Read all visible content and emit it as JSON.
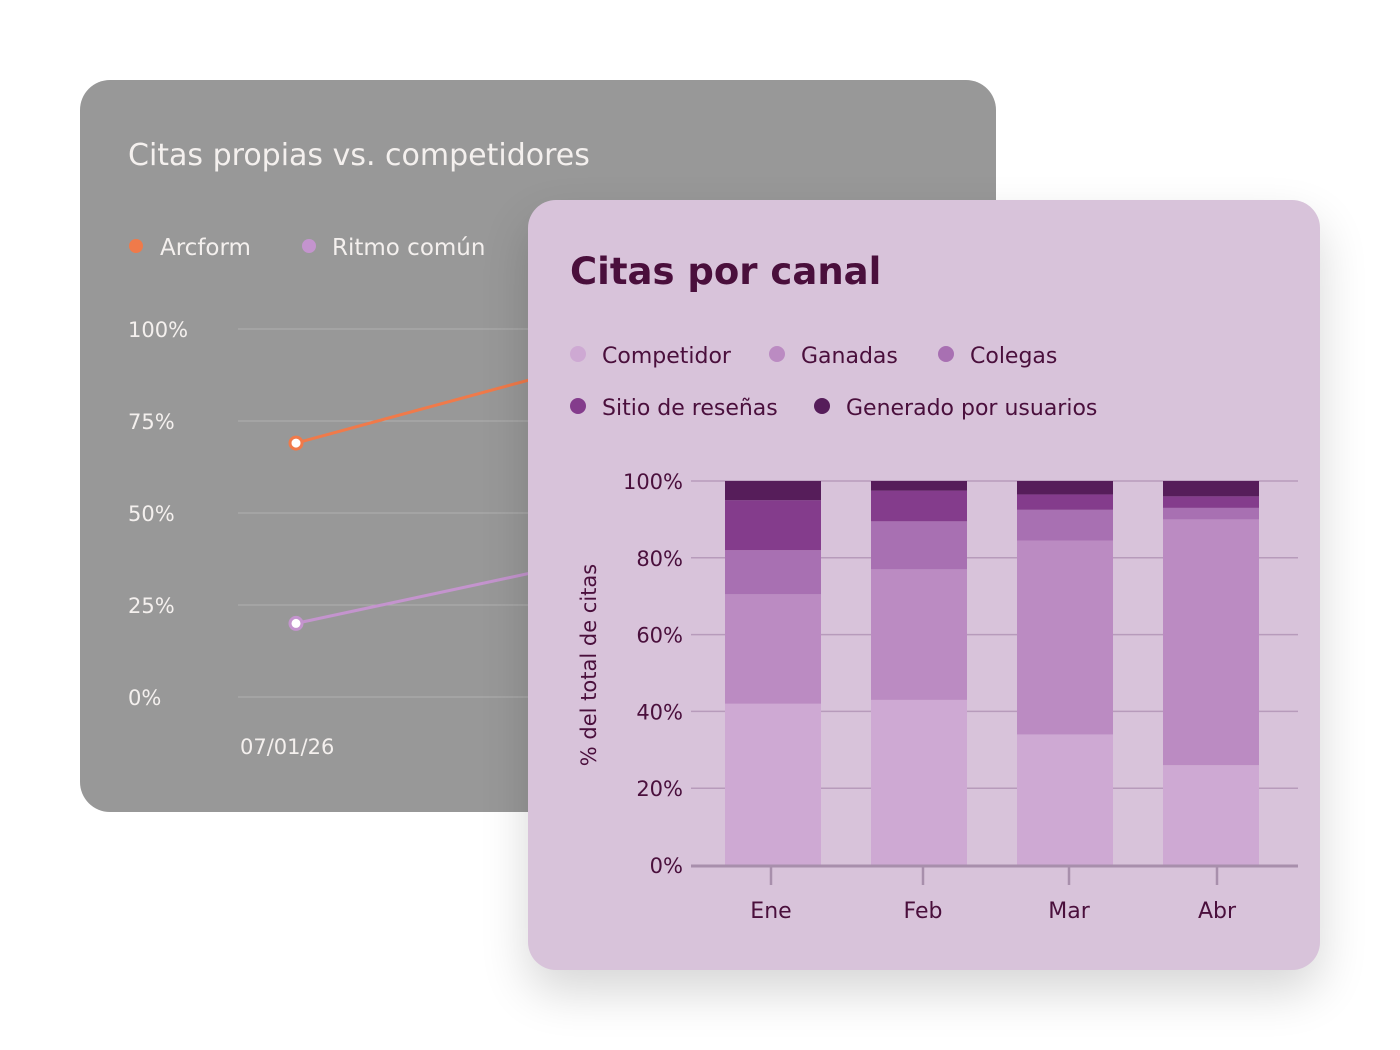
{
  "back_chart": {
    "title": "Citas propias vs. competidores",
    "legend": [
      {
        "name": "Arcform",
        "color": "#f07a4a"
      },
      {
        "name": "Ritmo común",
        "color": "#c494ce"
      }
    ],
    "chart_data": {
      "type": "line",
      "title": "Citas propias vs. competidores",
      "x": [
        "07/01/26"
      ],
      "x_tick_labels": [
        "07/01/26"
      ],
      "y_ticks": [
        "100%",
        "75%",
        "50%",
        "25%",
        "0%"
      ],
      "ylim": [
        0,
        100
      ],
      "grid": true,
      "legend_position": "top-left",
      "series": [
        {
          "name": "Arcform",
          "color": "#f07a4a",
          "values": [
            69
          ]
        },
        {
          "name": "Ritmo común",
          "color": "#c494ce",
          "values": [
            20
          ]
        }
      ]
    }
  },
  "front_chart": {
    "title": "Citas por canal",
    "legend": [
      {
        "name": "Competidor",
        "color": "#cea9d3"
      },
      {
        "name": "Ganadas",
        "color": "#bb8bc2"
      },
      {
        "name": "Colegas",
        "color": "#a870b2"
      },
      {
        "name": "Sitio de reseñas",
        "color": "#843c8c"
      },
      {
        "name": "Generado por usuarios",
        "color": "#561d5a"
      }
    ],
    "chart_data": {
      "type": "bar",
      "stacked": true,
      "title": "Citas por canal",
      "ylabel": "% del total de citas",
      "xlabel": "",
      "categories": [
        "Ene",
        "Feb",
        "Mar",
        "Abr"
      ],
      "y_ticks": [
        "0%",
        "20%",
        "40%",
        "60%",
        "80%",
        "100%"
      ],
      "ylim": [
        0,
        100
      ],
      "grid": true,
      "legend_position": "top-left",
      "series": [
        {
          "name": "Competidor",
          "color": "#cea9d3",
          "values": [
            42,
            43,
            34,
            26
          ]
        },
        {
          "name": "Ganadas",
          "color": "#bb8bc2",
          "values": [
            28.5,
            34,
            50.5,
            64
          ]
        },
        {
          "name": "Colegas",
          "color": "#a870b2",
          "values": [
            11.5,
            12.5,
            8,
            3
          ]
        },
        {
          "name": "Sitio de reseñas",
          "color": "#843c8c",
          "values": [
            13,
            8,
            4,
            3
          ]
        },
        {
          "name": "Generado por usuarios",
          "color": "#561d5a",
          "values": [
            5,
            2.5,
            3.5,
            4
          ]
        }
      ]
    }
  }
}
